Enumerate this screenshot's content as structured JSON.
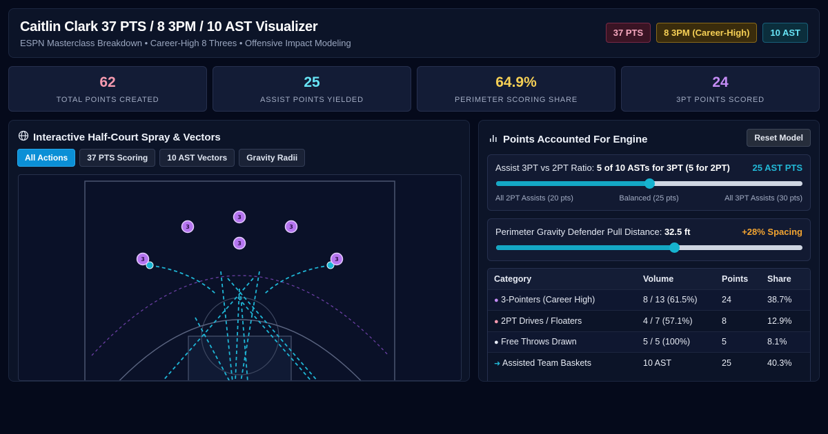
{
  "header": {
    "title": "Caitlin Clark 37 PTS / 8 3PM / 10 AST Visualizer",
    "subtitle": "ESPN Masterclass Breakdown • Career-High 8 Threes • Offensive Impact Modeling",
    "badges": [
      {
        "label": "37 PTS",
        "color": "#f6a7be"
      },
      {
        "label": "8 3PM (Career-High)",
        "color": "#f5cf55"
      },
      {
        "label": "10 AST",
        "color": "#67e3f5"
      }
    ]
  },
  "stats": [
    {
      "value": "62",
      "label": "TOTAL POINTS CREATED",
      "color": "#f69aaf"
    },
    {
      "value": "25",
      "label": "ASSIST POINTS YIELDED",
      "color": "#67e3f5"
    },
    {
      "value": "64.9%",
      "label": "PERIMETER SCORING SHARE",
      "color": "#f5cf55"
    },
    {
      "value": "24",
      "label": "3PT POINTS SCORED",
      "color": "#c48cf5"
    }
  ],
  "court_panel": {
    "title": "Interactive Half-Court Spray & Vectors",
    "title_icon": "globe-icon",
    "filters": [
      {
        "label": "All Actions",
        "active": true
      },
      {
        "label": "37 PTS Scoring",
        "active": false
      },
      {
        "label": "10 AST Vectors",
        "active": false
      },
      {
        "label": "Gravity Radii",
        "active": false
      }
    ],
    "three_marker_label": "3"
  },
  "engine_panel": {
    "title": "Points Accounted For Engine",
    "title_icon": "bar-chart-icon",
    "reset_label": "Reset Model",
    "ratio_control": {
      "label": "Assist 3PT vs 2PT Ratio:",
      "value": "5 of 10 ASTs for 3PT (5 for 2PT)",
      "result": "25 AST PTS",
      "result_color": "#22b8d6",
      "level_fraction": 0.5,
      "ticks": [
        "All 2PT Assists (20 pts)",
        "Balanced (25 pts)",
        "All 3PT Assists (30 pts)"
      ]
    },
    "gravity_control": {
      "label": "Perimeter Gravity Defender Pull Distance:",
      "value": "32.5 ft",
      "result": "+28% Spacing",
      "result_color": "#f2a431",
      "level_fraction": 0.58
    },
    "table": {
      "headers": [
        "Category",
        "Volume",
        "Points",
        "Share"
      ],
      "rows": [
        {
          "marker": "●",
          "marker_color": "#c48cf5",
          "category": "3-Pointers (Career High)",
          "volume": "8 / 13 (61.5%)",
          "points": "24",
          "share": "38.7%"
        },
        {
          "marker": "●",
          "marker_color": "#f69aaf",
          "category": "2PT Drives / Floaters",
          "volume": "4 / 7 (57.1%)",
          "points": "8",
          "share": "12.9%"
        },
        {
          "marker": "●",
          "marker_color": "#e6ebf5",
          "category": "Free Throws Drawn",
          "volume": "5 / 5 (100%)",
          "points": "5",
          "share": "8.1%"
        },
        {
          "marker": "➜",
          "marker_color": "#22b8d6",
          "category": "Assisted Team Baskets",
          "volume": "10 AST",
          "points": "25",
          "share": "40.3%"
        }
      ]
    }
  }
}
